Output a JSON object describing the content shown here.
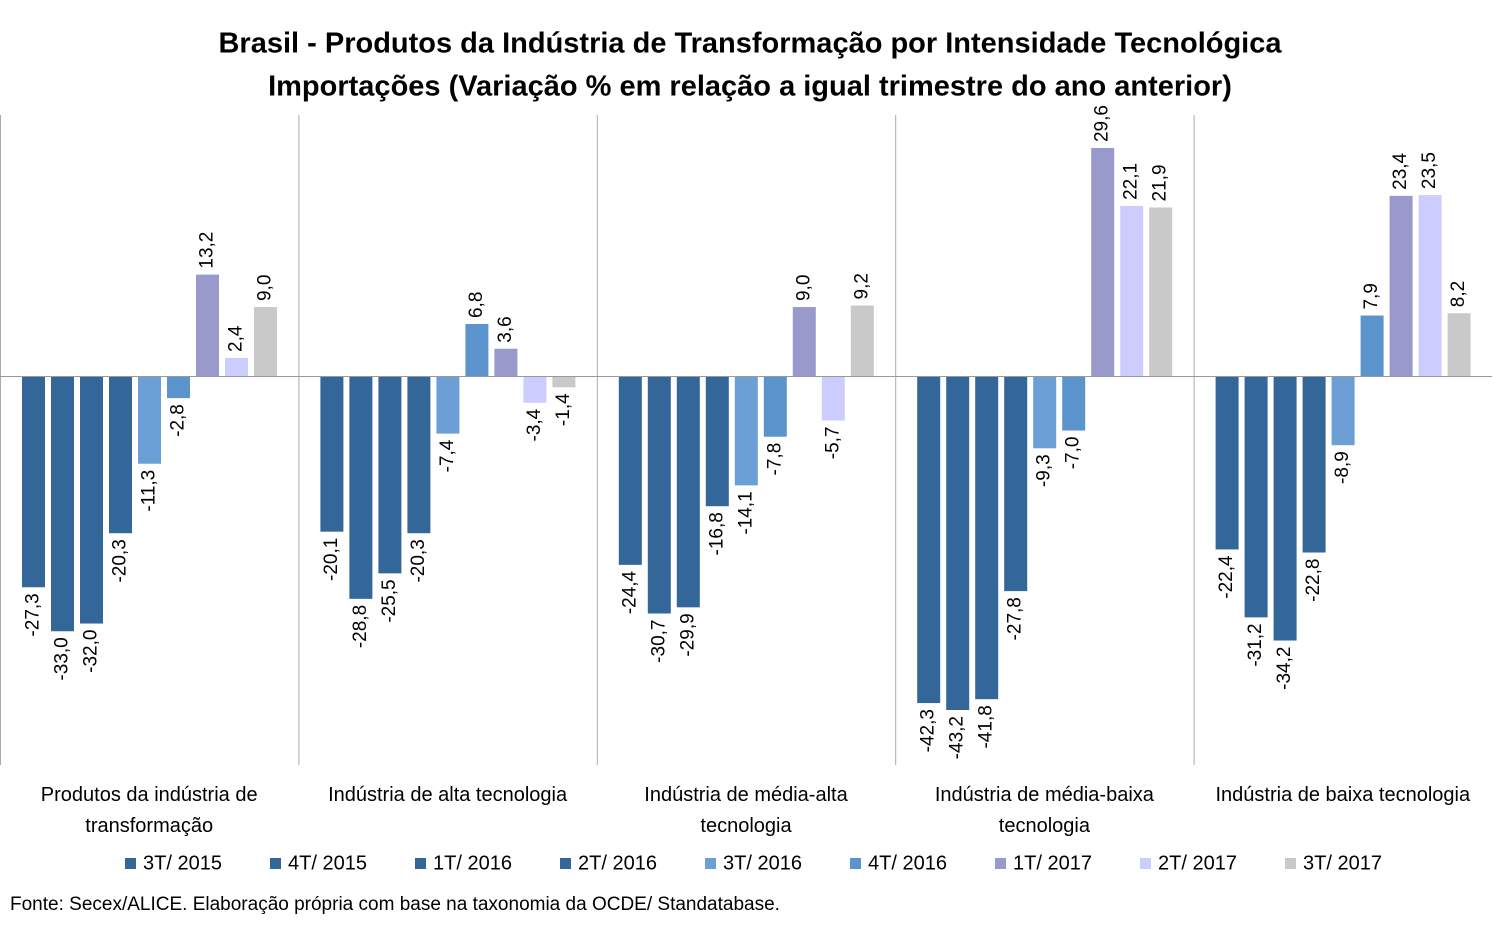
{
  "chart_data": {
    "type": "bar",
    "title": "Brasil - Produtos da Indústria de Transformação por Intensidade Tecnológica",
    "subtitle": "Importações (Variação % em relação a igual trimestre do ano anterior)",
    "source": "Fonte: Secex/ALICE. Elaboração própria com base na taxonomia da OCDE/ Standatabase.",
    "categories": [
      "Produtos da indústria de transformação",
      "Indústria de alta tecnologia",
      "Indústria de média-alta tecnologia",
      "Indústria de média-baixa tecnologia",
      "Indústria de baixa tecnologia"
    ],
    "series": [
      {
        "name": "3T/ 2015",
        "color": "#336699",
        "values": [
          -27.3,
          -20.1,
          -24.4,
          -42.3,
          -22.4
        ],
        "value_labels": [
          "-27,3",
          "-20,1",
          "-24,4",
          "-42,3",
          "-22,4"
        ]
      },
      {
        "name": "4T/ 2015",
        "color": "#336699",
        "values": [
          -33.0,
          -28.8,
          -30.7,
          -43.2,
          -31.2
        ],
        "value_labels": [
          "-33,0",
          "-28,8",
          "-30,7",
          "-43,2",
          "-31,2"
        ]
      },
      {
        "name": "1T/ 2016",
        "color": "#336699",
        "values": [
          -32.0,
          -25.5,
          -29.9,
          -41.8,
          -34.2
        ],
        "value_labels": [
          "-32,0",
          "-25,5",
          "-29,9",
          "-41,8",
          "-34,2"
        ]
      },
      {
        "name": "2T/ 2016",
        "color": "#336699",
        "values": [
          -20.3,
          -20.3,
          -16.8,
          -27.8,
          -22.8
        ],
        "value_labels": [
          "-20,3",
          "-20,3",
          "-16,8",
          "-27,8",
          "-22,8"
        ]
      },
      {
        "name": "3T/ 2016",
        "color": "#6b9fd6",
        "values": [
          -11.3,
          -7.4,
          -14.1,
          -9.3,
          -8.9
        ],
        "value_labels": [
          "-11,3",
          "-7,4",
          "-14,1",
          "-9,3",
          "-8,9"
        ]
      },
      {
        "name": "4T/ 2016",
        "color": "#5b93cc",
        "values": [
          -2.8,
          6.8,
          -7.8,
          -7.0,
          7.9
        ],
        "value_labels": [
          "-2,8",
          "6,8",
          "-7,8",
          "-7,0",
          "7,9"
        ]
      },
      {
        "name": "1T/ 2017",
        "color": "#9999cc",
        "values": [
          13.2,
          3.6,
          9.0,
          29.6,
          23.4
        ],
        "value_labels": [
          "13,2",
          "3,6",
          "9,0",
          "29,6",
          "23,4"
        ]
      },
      {
        "name": "2T/ 2017",
        "color": "#ccccff",
        "values": [
          2.4,
          -3.4,
          -5.7,
          22.1,
          23.5
        ],
        "value_labels": [
          "2,4",
          "-3,4",
          "-5,7",
          "22,1",
          "23,5"
        ]
      },
      {
        "name": "3T/ 2017",
        "color": "#c9c9c9",
        "values": [
          9.0,
          -1.4,
          9.2,
          21.9,
          8.2
        ],
        "value_labels": [
          "9,0",
          "-1,4",
          "9,2",
          "21,9",
          "8,2"
        ]
      }
    ]
  }
}
